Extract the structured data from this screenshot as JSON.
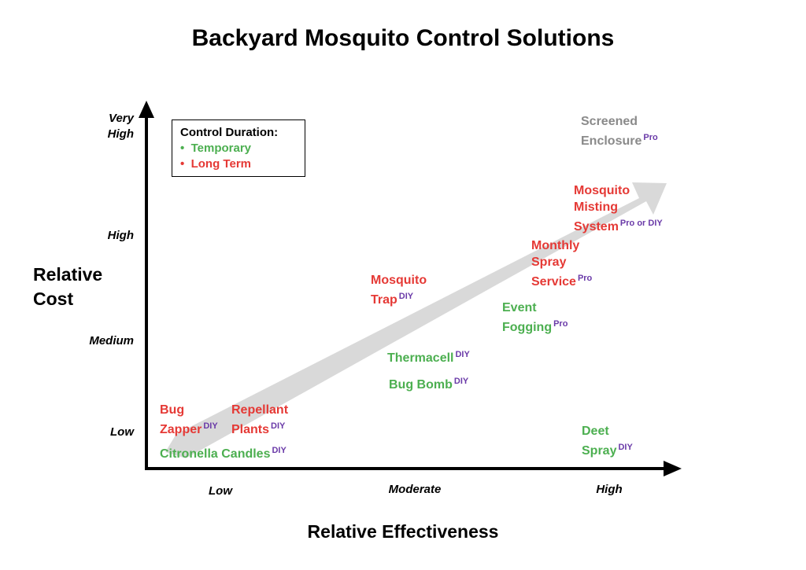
{
  "title": "Backyard Mosquito Control Solutions",
  "y_axis": {
    "label_line1": "Relative",
    "label_line2": "Cost",
    "ticks": {
      "very_high_1": "Very",
      "very_high_2": "High",
      "high": "High",
      "medium": "Medium",
      "low": "Low"
    }
  },
  "x_axis": {
    "label": "Relative Effectiveness",
    "ticks": {
      "low": "Low",
      "moderate": "Moderate",
      "high": "High"
    }
  },
  "legend": {
    "title": "Control Duration:",
    "temporary": "Temporary",
    "long_term": "Long Term",
    "bullet": "•"
  },
  "colors": {
    "temporary": "#4caf50",
    "long_term": "#e53935",
    "other": "#8a8a8a",
    "tag": "#6a3aa8",
    "trend_arrow": "#d9d9d9"
  },
  "items": {
    "bug_zapper": {
      "line1": "Bug",
      "line2": "Zapper",
      "tag": "DIY"
    },
    "repellant_plants": {
      "line1": "Repellant",
      "line2": "Plants",
      "tag": "DIY"
    },
    "citronella": {
      "line1": "Citronella Candles",
      "tag": "DIY"
    },
    "mosquito_trap": {
      "line1": "Mosquito",
      "line2": "Trap",
      "tag": "DIY"
    },
    "thermacell": {
      "line1": "Thermacell",
      "tag": "DIY"
    },
    "bug_bomb": {
      "line1": "Bug Bomb",
      "tag": "DIY"
    },
    "event_fogging": {
      "line1": "Event",
      "line2": "Fogging",
      "tag": "Pro"
    },
    "monthly_spray": {
      "line1": "Monthly",
      "line2": "Spray",
      "line3": "Service",
      "tag": "Pro"
    },
    "misting_system": {
      "line1": "Mosquito",
      "line2": "Misting",
      "line3": "System",
      "tag": "Pro or DIY"
    },
    "screened_enclosure": {
      "line1": "Screened",
      "line2": "Enclosure",
      "tag": "Pro"
    },
    "deet_spray": {
      "line1": "Deet",
      "line2": "Spray",
      "tag": "DIY"
    }
  }
}
